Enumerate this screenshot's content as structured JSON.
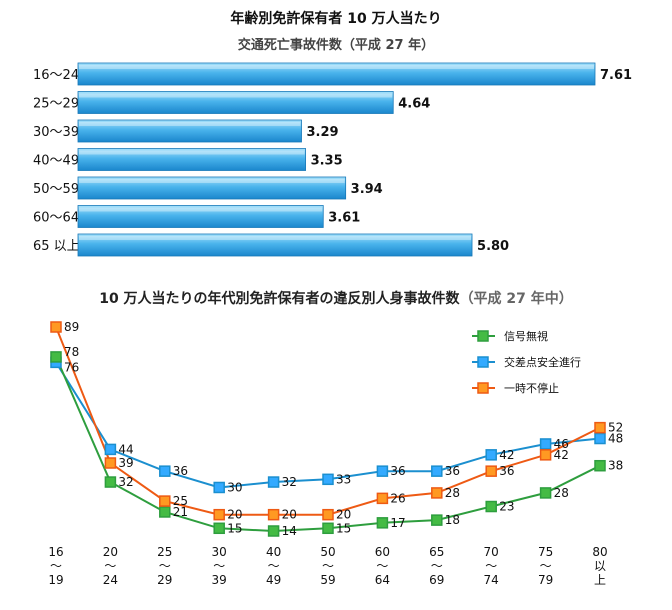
{
  "bar_chart_title": "年齢別免許保有者 10 万人当たり",
  "bar_chart_subtitle": "交通死亡事故件数（平成 27 年）",
  "line_chart_title": "10 万人当たりの年代別免許保有者の違反別人身事故件数",
  "line_chart_title_suffix": "（平成 27 年中）",
  "colors": {
    "bar_top": "#a8e2fb",
    "bar_mid": "#49b3ec",
    "bar_bottom": "#1a86cc",
    "series_green": "#2e9e3e",
    "series_blue": "#1b8fcf",
    "series_orange": "#ee5a14",
    "marker_green": "#44bb44",
    "marker_blue": "#33aaff",
    "marker_orange": "#ff9922"
  },
  "chart_data": [
    {
      "type": "bar",
      "orientation": "horizontal",
      "title": "年齢別免許保有者 10 万人当たり",
      "subtitle": "交通死亡事故件数（平成 27 年）",
      "categories": [
        "16〜24",
        "25〜29",
        "30〜39",
        "40〜49",
        "50〜59",
        "60〜64",
        "65 以上"
      ],
      "values": [
        7.61,
        4.64,
        3.29,
        3.35,
        3.94,
        3.61,
        5.8
      ],
      "value_labels": [
        "7.61",
        "4.64",
        "3.29",
        "3.35",
        "3.94",
        "3.61",
        "5.80"
      ],
      "xlim": [
        0,
        7.61
      ],
      "grid": false
    },
    {
      "type": "line",
      "title": "10 万人当たりの年代別免許保有者の違反別人身事故件数",
      "subtitle": "（平成 27 年中）",
      "categories": [
        [
          "16",
          "〜",
          "19"
        ],
        [
          "20",
          "〜",
          "24"
        ],
        [
          "25",
          "〜",
          "29"
        ],
        [
          "30",
          "〜",
          "39"
        ],
        [
          "40",
          "〜",
          "49"
        ],
        [
          "50",
          "〜",
          "59"
        ],
        [
          "60",
          "〜",
          "64"
        ],
        [
          "65",
          "〜",
          "69"
        ],
        [
          "70",
          "〜",
          "74"
        ],
        [
          "75",
          "〜",
          "79"
        ],
        [
          "80",
          "以",
          "上"
        ]
      ],
      "series": [
        {
          "name": "信号無視",
          "color": "#2e9e3e",
          "marker": "#44bb44",
          "values": [
            78,
            32,
            21,
            15,
            14,
            15,
            17,
            18,
            23,
            28,
            38
          ]
        },
        {
          "name": "交差点安全進行",
          "color": "#1b8fcf",
          "marker": "#33aaff",
          "values": [
            76,
            44,
            36,
            30,
            32,
            33,
            36,
            36,
            42,
            46,
            48
          ]
        },
        {
          "name": "一時不停止",
          "color": "#ee5a14",
          "marker": "#ff9922",
          "values": [
            89,
            39,
            25,
            20,
            20,
            20,
            26,
            28,
            36,
            42,
            52
          ]
        }
      ],
      "legend_position": "top-right",
      "grid": false
    }
  ]
}
